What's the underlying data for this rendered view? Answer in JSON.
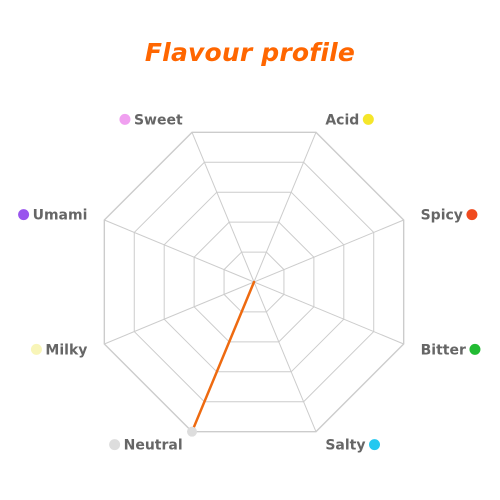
{
  "chart_data": {
    "type": "radar",
    "title": "Flavour profile",
    "axes": [
      {
        "label": "Sweet",
        "color": "#f0a0f0"
      },
      {
        "label": "Acid",
        "color": "#f5e62a"
      },
      {
        "label": "Spicy",
        "color": "#f04a1e"
      },
      {
        "label": "Bitter",
        "color": "#22bb33"
      },
      {
        "label": "Salty",
        "color": "#22c8f0"
      },
      {
        "label": "Neutral",
        "color": "#dddddd"
      },
      {
        "label": "Milky",
        "color": "#f8f5b8"
      },
      {
        "label": "Umami",
        "color": "#9955ee"
      }
    ],
    "series": [
      {
        "color": "#ee6a10",
        "values": [
          0,
          0,
          0,
          0,
          0,
          1.0,
          0,
          0
        ]
      }
    ],
    "range": [
      0,
      1
    ],
    "grid_levels": 5,
    "grid": true,
    "colors": {
      "title": "#ff6600",
      "grid": "#cccccc",
      "label": "#666666"
    }
  }
}
